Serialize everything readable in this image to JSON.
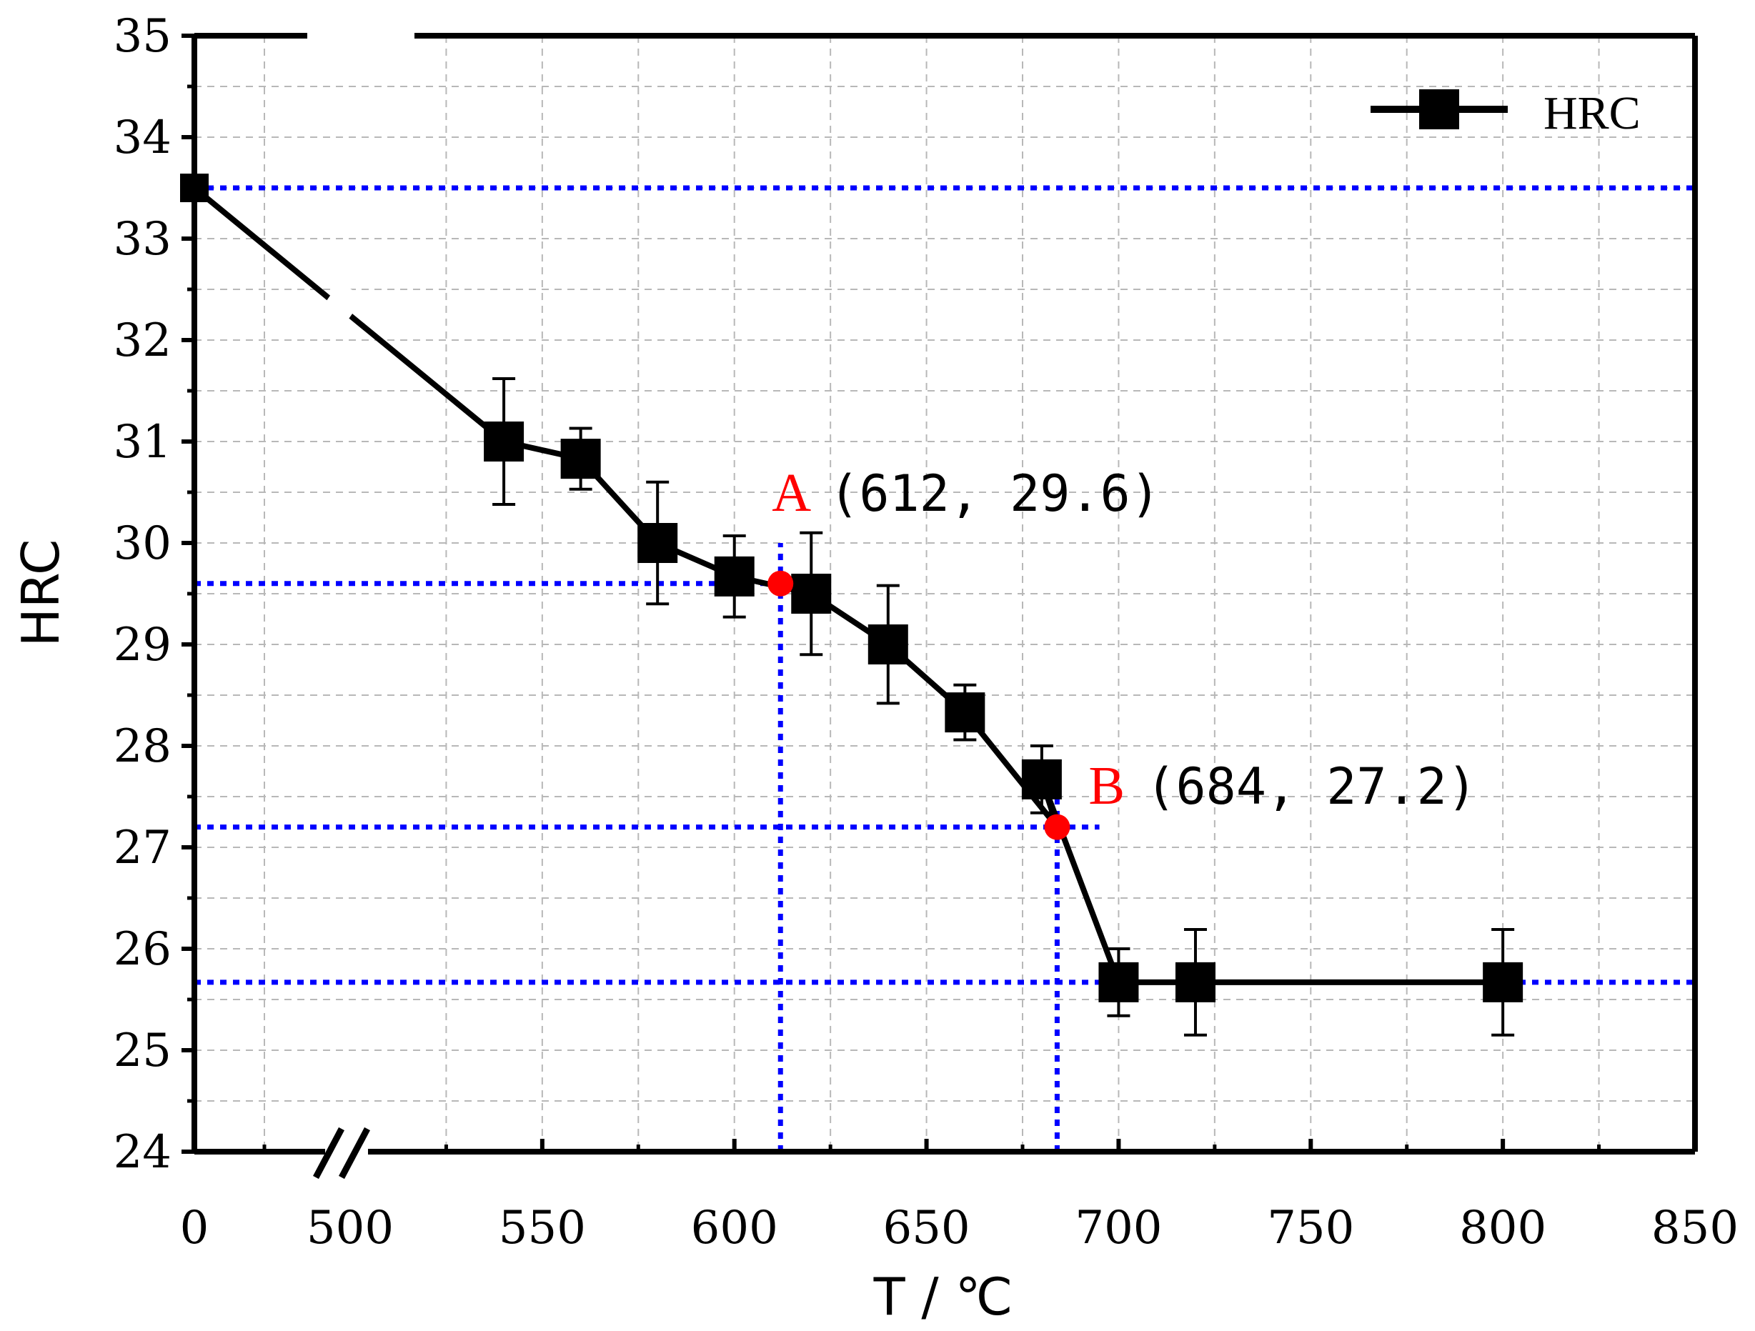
{
  "chart_data": {
    "type": "line",
    "title": "",
    "xlabel": "T / ℃",
    "ylabel": "HRC",
    "xlim_break": {
      "left": [
        0,
        500
      ],
      "right": [
        500,
        850
      ]
    },
    "ylim": [
      24,
      35
    ],
    "grid": true,
    "legend": {
      "position": "top-right",
      "entries": [
        "HRC"
      ]
    },
    "x_tick_labels": [
      "0",
      "500",
      "550",
      "600",
      "650",
      "700",
      "750",
      "800",
      "850"
    ],
    "x_ticks": [
      0,
      500,
      550,
      600,
      650,
      700,
      750,
      800,
      850
    ],
    "y_tick_labels": [
      "24",
      "25",
      "26",
      "27",
      "28",
      "29",
      "30",
      "31",
      "32",
      "33",
      "34",
      "35"
    ],
    "y_ticks": [
      24,
      25,
      26,
      27,
      28,
      29,
      30,
      31,
      32,
      33,
      34,
      35
    ],
    "series": [
      {
        "name": "HRC",
        "color": "#000000",
        "marker": "square",
        "points": [
          {
            "x": 0,
            "y": 33.5,
            "err": 0
          },
          {
            "x": 540,
            "y": 31.0,
            "err": 0.62
          },
          {
            "x": 560,
            "y": 30.83,
            "err": 0.3
          },
          {
            "x": 580,
            "y": 30.0,
            "err": 0.6
          },
          {
            "x": 600,
            "y": 29.67,
            "err": 0.4
          },
          {
            "x": 620,
            "y": 29.5,
            "err": 0.6
          },
          {
            "x": 640,
            "y": 29.0,
            "err": 0.58
          },
          {
            "x": 660,
            "y": 28.33,
            "err": 0.27
          },
          {
            "x": 680,
            "y": 27.67,
            "err": 0.33
          },
          {
            "x": 700,
            "y": 25.67,
            "err": 0.33
          },
          {
            "x": 720,
            "y": 25.67,
            "err": 0.52
          },
          {
            "x": 800,
            "y": 25.67,
            "err": 0.52
          }
        ]
      }
    ],
    "reference_lines": {
      "color": "#0000ff",
      "horizontal": [
        {
          "y": 33.5,
          "x_from": 0,
          "x_to": 850
        },
        {
          "y": 29.6,
          "x_from": 0,
          "x_to": 620
        },
        {
          "y": 27.2,
          "x_from": 0,
          "x_to": 695
        },
        {
          "y": 25.67,
          "x_from": 0,
          "x_to": 850
        }
      ],
      "vertical": [
        {
          "x": 612,
          "y_from": 24,
          "y_to": 30
        },
        {
          "x": 684,
          "y_from": 24,
          "y_to": 27.6
        }
      ]
    },
    "annotations": [
      {
        "letter": "A",
        "coords": "(612, 29.6)",
        "x": 612,
        "y": 29.6,
        "color": "#ff0000"
      },
      {
        "letter": "B",
        "coords": "(684, 27.2)",
        "x": 684,
        "y": 27.2,
        "color": "#ff0000"
      }
    ]
  }
}
